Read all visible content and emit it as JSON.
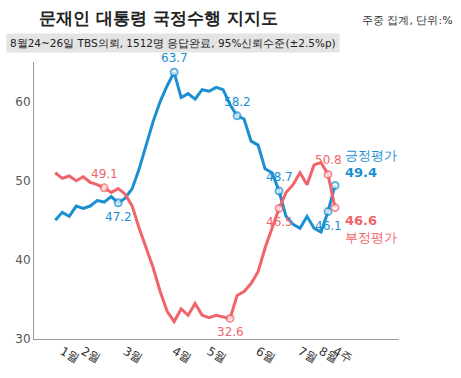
{
  "chart_data": {
    "type": "line",
    "title": "문재인 대통령 국정수행 지지도",
    "subtitle": "8월24~26일 TBS의뢰, 1512명 응답완료, 95%신뢰수준(±2.5%p)",
    "note": "주중 집계, 단위:%",
    "categories": [
      null,
      "1월",
      null,
      null,
      "2월",
      null,
      null,
      null,
      null,
      null,
      "3월",
      null,
      null,
      null,
      null,
      null,
      null,
      "4월",
      null,
      null,
      null,
      null,
      "5월",
      null,
      null,
      null,
      null,
      null,
      null,
      "6월",
      null,
      null,
      null,
      null,
      null,
      "7월",
      null,
      null,
      "8월",
      null,
      "4주"
    ],
    "series": [
      {
        "name": "긍정평가",
        "color": "#1b8fd2",
        "marker": "circle",
        "values": [
          45.0,
          46.0,
          45.5,
          46.8,
          46.5,
          46.8,
          47.5,
          47.3,
          48.0,
          47.2,
          47.8,
          49.0,
          51.5,
          54.5,
          57.5,
          60.0,
          62.0,
          63.7,
          60.5,
          61.0,
          60.3,
          61.5,
          61.3,
          61.8,
          61.5,
          59.6,
          58.2,
          57.8,
          55.0,
          54.5,
          51.5,
          51.0,
          48.7,
          45.5,
          44.5,
          44.0,
          45.5,
          44.0,
          43.5,
          46.1,
          49.4
        ]
      },
      {
        "name": "부정평가",
        "color": "#f0646b",
        "marker": "circle",
        "values": [
          51.0,
          50.3,
          50.6,
          50.0,
          50.5,
          49.8,
          49.5,
          49.1,
          48.5,
          49.0,
          48.3,
          46.8,
          44.0,
          41.5,
          39.0,
          36.0,
          33.5,
          32.2,
          33.8,
          33.0,
          34.5,
          33.0,
          32.7,
          33.0,
          32.8,
          32.6,
          35.5,
          36.0,
          37.0,
          38.5,
          41.5,
          44.0,
          46.5,
          48.5,
          49.5,
          51.0,
          49.5,
          52.0,
          52.3,
          50.8,
          46.6
        ]
      }
    ],
    "annotations": [
      {
        "series": "부정평가",
        "text": "49.1",
        "position": "above"
      },
      {
        "series": "긍정평가",
        "text": "47.2",
        "position": "below"
      },
      {
        "series": "긍정평가",
        "text": "63.7",
        "position": "above"
      },
      {
        "series": "부정평가",
        "text": "32.6",
        "position": "below"
      },
      {
        "series": "긍정평가",
        "text": "58.2",
        "position": "above"
      },
      {
        "series": "긍정평가",
        "text": "48.7",
        "position": "above"
      },
      {
        "series": "부정평가",
        "text": "46.5",
        "position": "below"
      },
      {
        "series": "부정평가",
        "text": "50.8",
        "position": "above"
      },
      {
        "series": "긍정평가",
        "text": "46.1",
        "position": "below"
      }
    ],
    "ylim": [
      30,
      65
    ],
    "yticks": [
      30,
      40,
      50,
      60
    ],
    "grid": false
  }
}
